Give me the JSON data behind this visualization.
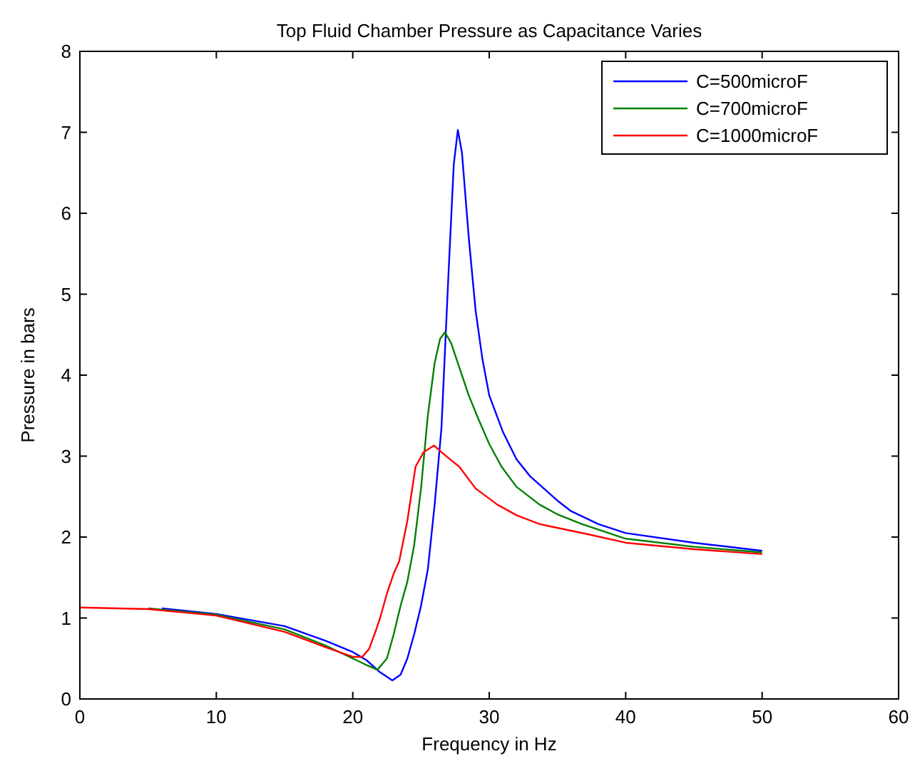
{
  "chart_data": {
    "type": "line",
    "title": "Top Fluid Chamber Pressure as Capacitance Varies",
    "xlabel": "Frequency in Hz",
    "ylabel": "Pressure in bars",
    "xlim": [
      0,
      60
    ],
    "ylim": [
      0,
      8
    ],
    "xticks": [
      0,
      10,
      20,
      30,
      40,
      50,
      60
    ],
    "yticks": [
      0,
      1,
      2,
      3,
      4,
      5,
      6,
      7,
      8
    ],
    "grid": false,
    "legend": "top right",
    "marker": "none",
    "line_style": "solid",
    "series": [
      {
        "name": "C=500microF",
        "color": "#0000ff",
        "x": [
          6,
          10,
          15,
          18,
          20,
          21,
          22,
          22.9,
          23.5,
          24,
          24.5,
          25,
          25.5,
          26,
          26.5,
          27,
          27.4,
          27.7,
          28,
          28.5,
          29,
          29.5,
          30,
          31,
          32,
          33,
          34,
          35,
          36,
          38,
          40,
          45,
          50
        ],
        "values": [
          1.12,
          1.05,
          0.9,
          0.72,
          0.58,
          0.48,
          0.33,
          0.23,
          0.3,
          0.5,
          0.8,
          1.15,
          1.6,
          2.4,
          3.35,
          5.2,
          6.6,
          7.03,
          6.75,
          5.7,
          4.8,
          4.2,
          3.75,
          3.3,
          2.96,
          2.75,
          2.6,
          2.45,
          2.32,
          2.16,
          2.05,
          1.93,
          1.83
        ]
      },
      {
        "name": "C=700microF",
        "color": "#008000",
        "x": [
          5,
          10,
          15,
          18,
          20,
          21,
          21.8,
          22.5,
          23,
          23.5,
          24,
          24.5,
          25,
          25.5,
          26,
          26.4,
          26.75,
          27.2,
          27.9,
          28.5,
          29.2,
          30,
          30.9,
          32,
          33.7,
          35,
          36.8,
          40,
          45,
          50
        ],
        "values": [
          1.12,
          1.04,
          0.86,
          0.66,
          0.5,
          0.42,
          0.36,
          0.5,
          0.8,
          1.15,
          1.45,
          1.9,
          2.6,
          3.5,
          4.15,
          4.45,
          4.53,
          4.4,
          4.05,
          3.75,
          3.46,
          3.15,
          2.87,
          2.62,
          2.4,
          2.28,
          2.16,
          1.98,
          1.88,
          1.81
        ]
      },
      {
        "name": "C=1000microF",
        "color": "#ff0000",
        "x": [
          0,
          5,
          10,
          15,
          18,
          20,
          20.7,
          21.2,
          21.7,
          22,
          22.5,
          23,
          23.4,
          24,
          24.6,
          25.2,
          25.95,
          26.5,
          27.2,
          27.8,
          29,
          30.6,
          32,
          33.7,
          37.1,
          40,
          45,
          50
        ],
        "values": [
          1.13,
          1.11,
          1.03,
          0.83,
          0.64,
          0.52,
          0.52,
          0.62,
          0.85,
          1.0,
          1.3,
          1.55,
          1.7,
          2.2,
          2.87,
          3.05,
          3.13,
          3.05,
          2.95,
          2.87,
          2.6,
          2.4,
          2.27,
          2.16,
          2.04,
          1.93,
          1.85,
          1.79
        ]
      }
    ]
  }
}
